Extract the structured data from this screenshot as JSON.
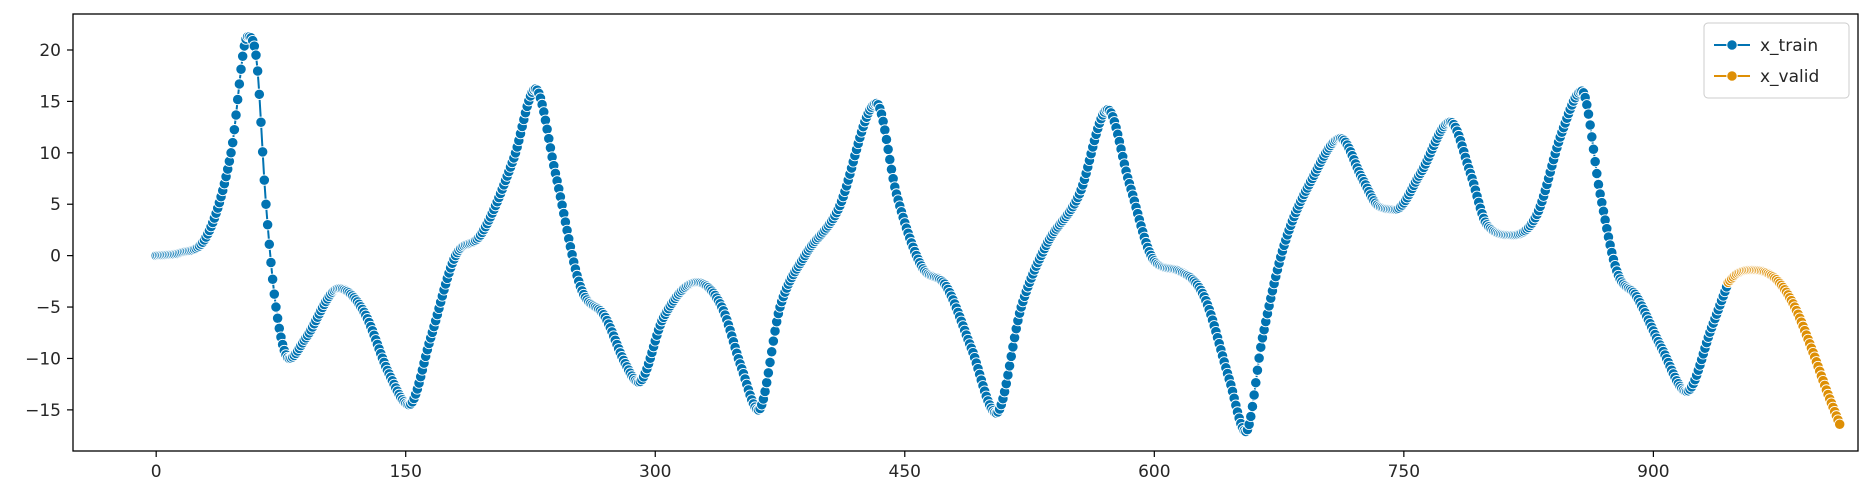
{
  "chart_data": {
    "type": "line",
    "title": "",
    "xlabel": "",
    "ylabel": "",
    "xlim": [
      -50,
      1023
    ],
    "ylim": [
      -19,
      23.5
    ],
    "xticks": [
      0,
      150,
      300,
      450,
      600,
      750,
      900
    ],
    "yticks": [
      20,
      15,
      10,
      5,
      0,
      -5,
      -10,
      -15
    ],
    "grid": false,
    "legend": {
      "placement": "top-right"
    },
    "marker": "circle",
    "series": [
      {
        "name": "x_train",
        "color": "#0173b2",
        "keypoints": [
          [
            0,
            0
          ],
          [
            15,
            0.3
          ],
          [
            30,
            1.8
          ],
          [
            45,
            10
          ],
          [
            55,
            21.3
          ],
          [
            60,
            19.5
          ],
          [
            66,
            5
          ],
          [
            72,
            -5
          ],
          [
            80,
            -10
          ],
          [
            90,
            -8
          ],
          [
            110,
            -3.2
          ],
          [
            125,
            -5.5
          ],
          [
            140,
            -11.5
          ],
          [
            152,
            -14.5
          ],
          [
            165,
            -8
          ],
          [
            180,
            0
          ],
          [
            195,
            2
          ],
          [
            215,
            9.5
          ],
          [
            228,
            16.2
          ],
          [
            240,
            8
          ],
          [
            255,
            -3
          ],
          [
            270,
            -6
          ],
          [
            282,
            -10.5
          ],
          [
            290,
            -12.3
          ],
          [
            305,
            -6
          ],
          [
            325,
            -2.6
          ],
          [
            340,
            -5
          ],
          [
            352,
            -11
          ],
          [
            362,
            -15
          ],
          [
            375,
            -5
          ],
          [
            390,
            0
          ],
          [
            410,
            4.5
          ],
          [
            433,
            14.8
          ],
          [
            445,
            6
          ],
          [
            460,
            -1
          ],
          [
            475,
            -3
          ],
          [
            490,
            -9
          ],
          [
            505,
            -15.3
          ],
          [
            520,
            -5
          ],
          [
            535,
            1
          ],
          [
            555,
            6
          ],
          [
            572,
            14.2
          ],
          [
            585,
            7
          ],
          [
            600,
            -0.5
          ],
          [
            615,
            -1.5
          ],
          [
            630,
            -4
          ],
          [
            645,
            -12
          ],
          [
            655,
            -17.1
          ],
          [
            665,
            -8
          ],
          [
            678,
            1
          ],
          [
            695,
            7.5
          ],
          [
            712,
            11.4
          ],
          [
            725,
            7.5
          ],
          [
            735,
            4.8
          ],
          [
            745,
            4.5
          ],
          [
            760,
            8
          ],
          [
            778,
            13
          ],
          [
            790,
            8
          ],
          [
            800,
            3
          ],
          [
            815,
            2
          ],
          [
            830,
            4
          ],
          [
            845,
            12
          ],
          [
            857,
            16
          ],
          [
            868,
            6
          ],
          [
            878,
            -1.5
          ],
          [
            890,
            -4
          ],
          [
            905,
            -9
          ],
          [
            920,
            -13.2
          ],
          [
            935,
            -7
          ],
          [
            945,
            -2.6
          ]
        ]
      },
      {
        "name": "x_valid",
        "color": "#de8f05",
        "keypoints": [
          [
            945,
            -2.6
          ],
          [
            950,
            -1.8
          ],
          [
            958,
            -1.4
          ],
          [
            965,
            -1.5
          ],
          [
            975,
            -2.5
          ],
          [
            985,
            -5
          ],
          [
            995,
            -9
          ],
          [
            1005,
            -13.5
          ],
          [
            1012,
            -16.4
          ]
        ]
      }
    ]
  }
}
